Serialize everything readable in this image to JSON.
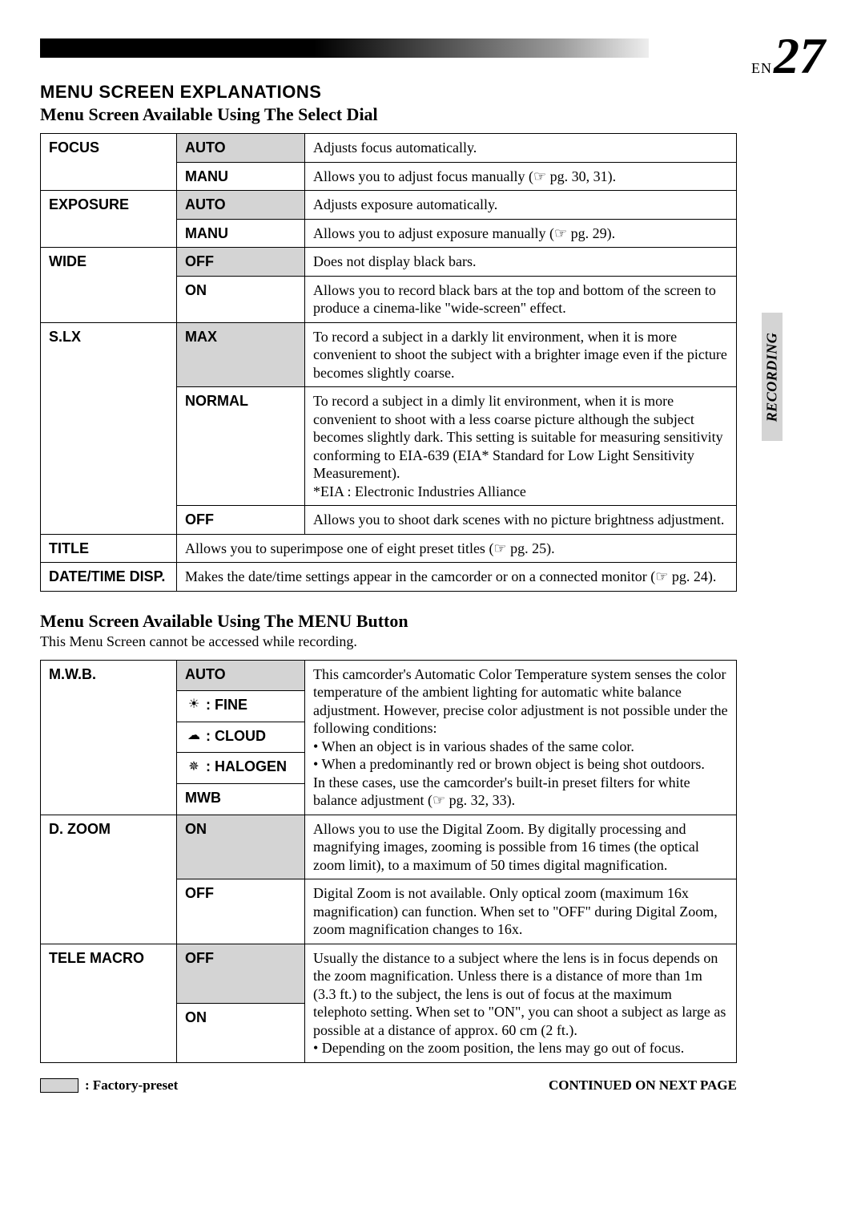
{
  "page": {
    "lang": "EN",
    "number": "27"
  },
  "sideTab": "RECORDING",
  "headings": {
    "h1": "MENU SCREEN EXPLANATIONS",
    "h2a": "Menu Screen Available Using The Select Dial",
    "h2b": "Menu Screen Available Using The MENU Button"
  },
  "note": "This Menu Screen cannot be accessed while recording.",
  "footer": {
    "fp": ": Factory-preset",
    "continued": "CONTINUED ON NEXT PAGE"
  },
  "icons": {
    "pointer": "☞",
    "sun": "☀",
    "cloud": "☁",
    "halogen": "✵"
  },
  "table1": {
    "rows": [
      {
        "name": "FOCUS",
        "opts": [
          {
            "label": "AUTO",
            "preset": true,
            "desc": "Adjusts focus automatically."
          },
          {
            "label": "MANU",
            "preset": false,
            "desc": "Allows you to adjust focus manually (☞ pg. 30, 31)."
          }
        ]
      },
      {
        "name": "EXPOSURE",
        "opts": [
          {
            "label": "AUTO",
            "preset": true,
            "desc": "Adjusts exposure automatically."
          },
          {
            "label": "MANU",
            "preset": false,
            "desc": "Allows you to adjust exposure manually (☞ pg. 29)."
          }
        ]
      },
      {
        "name": "WIDE",
        "opts": [
          {
            "label": "OFF",
            "preset": true,
            "desc": "Does not display black bars."
          },
          {
            "label": "ON",
            "preset": false,
            "desc": "Allows you to record black bars at the top and bottom of the screen to produce a cinema-like \"wide-screen\" effect."
          }
        ]
      },
      {
        "name": "S.LX",
        "opts": [
          {
            "label": "MAX",
            "preset": true,
            "desc": "To record a subject in a darkly lit environment, when it is more convenient to shoot the subject with a brighter image even if the picture becomes slightly coarse."
          },
          {
            "label": "NORMAL",
            "preset": false,
            "desc": "To record a subject in a dimly lit environment, when it is more convenient to shoot with a less coarse picture although the subject becomes slightly dark. This setting is suitable for measuring sensitivity conforming to EIA-639 (EIA* Standard for Low Light Sensitivity Measurement).\n*EIA : Electronic Industries Alliance"
          },
          {
            "label": "OFF",
            "preset": false,
            "desc": "Allows you to shoot dark scenes with no picture brightness adjustment."
          }
        ]
      },
      {
        "name": "TITLE",
        "span": true,
        "desc": "Allows you to superimpose one of eight preset titles (☞ pg. 25)."
      },
      {
        "name": "DATE/TIME DISP.",
        "span": true,
        "desc": "Makes the date/time settings appear in the camcorder or on a connected monitor (☞ pg. 24)."
      }
    ]
  },
  "table2": {
    "mwb": {
      "name": "M.W.B.",
      "opts": [
        {
          "label": "AUTO",
          "preset": true,
          "icon": null
        },
        {
          "label": ": FINE",
          "preset": false,
          "icon": "sun"
        },
        {
          "label": ": CLOUD",
          "preset": false,
          "icon": "cloud"
        },
        {
          "label": ": HALOGEN",
          "preset": false,
          "icon": "halogen"
        },
        {
          "label": "MWB",
          "preset": false,
          "icon": null
        }
      ],
      "desc_main": "This camcorder's Automatic Color Temperature system senses the color temperature of the ambient lighting for automatic white balance adjustment. However, precise color adjustment is not possible under the following conditions:",
      "desc_b1": "• When an object is in various shades of the same color.",
      "desc_b2": "• When a predominantly red or brown object is being shot outdoors.",
      "desc_tail": "In these cases, use the camcorder's built-in preset filters for white balance adjustment (☞ pg. 32, 33)."
    },
    "dzoom": {
      "name": "D. ZOOM",
      "opts": [
        {
          "label": "ON",
          "preset": true,
          "desc": "Allows you to use the Digital Zoom. By digitally processing and magnifying images, zooming is possible from 16 times (the optical zoom limit), to a maximum of 50 times digital magnification."
        },
        {
          "label": "OFF",
          "preset": false,
          "desc": "Digital Zoom is not available. Only optical zoom (maximum 16x magnification) can function. When set to \"OFF\" during Digital Zoom, zoom magnification changes to 16x."
        }
      ]
    },
    "tele": {
      "name": "TELE MACRO",
      "opts": [
        {
          "label": "OFF",
          "preset": true
        },
        {
          "label": "ON",
          "preset": false
        }
      ],
      "desc_main": "Usually the distance to a subject where the lens is in focus depends on the zoom magnification. Unless there is a distance of more than 1m (3.3 ft.) to the subject, the lens is out of focus at the maximum telephoto setting. When set to \"ON\", you can shoot a subject as large as possible at a distance of approx. 60 cm (2 ft.).",
      "desc_b1": "• Depending on the zoom position, the lens may go out of focus."
    }
  },
  "colors": {
    "preset_bg": "#d4d4d4",
    "border": "#000000",
    "text": "#000000",
    "page_bg": "#ffffff"
  }
}
